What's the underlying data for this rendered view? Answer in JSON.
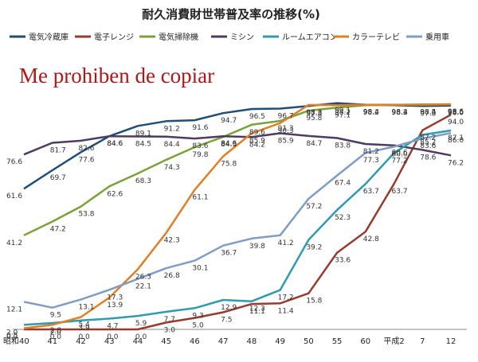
{
  "watermark": "Me prohiben de copiar",
  "chart_data": {
    "type": "line",
    "title": "耐久消費財世帯普及率の推移(%)",
    "xlabel": "",
    "ylabel": "",
    "categories": [
      "昭和40",
      "41",
      "42",
      "43",
      "44",
      "45",
      "46",
      "47",
      "48",
      "49",
      "50",
      "55",
      "60",
      "平成2",
      "7",
      "12"
    ],
    "ylim": [
      0,
      100
    ],
    "grid": false,
    "legend": "top",
    "series": [
      {
        "name": "電気冷蔵庫",
        "color": "#1f4e79",
        "values": [
          61.6,
          69.7,
          77.6,
          84.6,
          89.1,
          91.2,
          91.6,
          94.7,
          96.5,
          96.7,
          97.8,
          99.1,
          98.4,
          98.2,
          97.8,
          98.0
        ]
      },
      {
        "name": "電子レンジ",
        "color": "#983b2f",
        "values": [
          0.0,
          0.0,
          0.0,
          0.0,
          0.0,
          3.0,
          5.0,
          7.5,
          11.1,
          11.4,
          15.8,
          33.6,
          42.8,
          63.7,
          87.2,
          94.0
        ]
      },
      {
        "name": "電気掃除機",
        "color": "#7ba23a",
        "values": [
          41.2,
          47.2,
          53.8,
          62.6,
          68.3,
          74.3,
          79.8,
          84.3,
          89.6,
          91.3,
          95.8,
          97.1,
          98.2,
          98.3,
          98.5,
          98.6
        ]
      },
      {
        "name": "ミシン",
        "color": "#4e3b5f",
        "values": [
          76.6,
          81.7,
          82.6,
          84.6,
          84.5,
          84.4,
          83.6,
          84.6,
          84.2,
          85.9,
          84.7,
          83.8,
          81.2,
          80.6,
          78.6,
          76.2
        ]
      },
      {
        "name": "ルームエアコン",
        "color": "#2e9bb0",
        "values": [
          2.0,
          2.8,
          3.9,
          4.7,
          5.9,
          7.7,
          9.3,
          12.9,
          12.3,
          17.2,
          39.2,
          52.3,
          63.7,
          77.2,
          85.2,
          87.1
        ]
      },
      {
        "name": "カラーテレビ",
        "color": "#e07f24",
        "values": [
          0.5,
          2.0,
          5.4,
          13.9,
          26.3,
          42.3,
          61.1,
          75.8,
          85.9,
          90.3,
          98.3,
          98.2,
          98.4,
          98.4,
          98.4,
          98.5
        ]
      },
      {
        "name": "乗用車",
        "color": "#7f9cc6",
        "values": [
          12.1,
          9.5,
          13.1,
          17.3,
          22.1,
          26.8,
          30.1,
          36.7,
          39.8,
          41.2,
          57.2,
          67.4,
          77.3,
          80.0,
          83.6,
          86.0
        ]
      }
    ]
  }
}
